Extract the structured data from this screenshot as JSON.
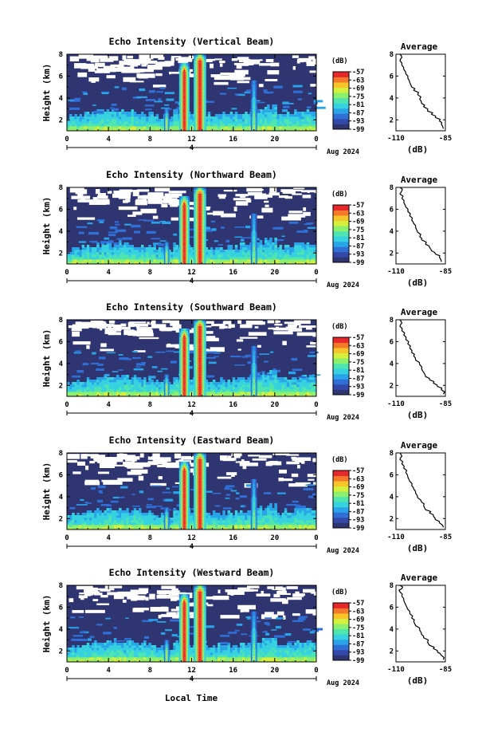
{
  "page": {
    "xlabel": "Local Time"
  },
  "colors": {
    "background": "#2e3571",
    "scale": [
      "#2e3571",
      "#3448a8",
      "#2f6fd6",
      "#2aa4e8",
      "#37d2e0",
      "#4fe5b0",
      "#8cf06e",
      "#d4ef3c",
      "#f7c52a",
      "#f4792a",
      "#e6282a"
    ]
  },
  "chart_data": [
    {
      "type": "heatmap",
      "title": "Echo Intensity (Vertical Beam)",
      "ylabel": "Height (km)",
      "xticks": [
        "0",
        "4",
        "8",
        "12",
        "16",
        "20",
        "0"
      ],
      "xlim": [
        0,
        24
      ],
      "ylim": [
        1,
        8
      ],
      "yticks": [
        "2",
        "4",
        "6",
        "8"
      ],
      "day_marker": "4",
      "month_label": "Aug 2024",
      "colorbar": {
        "unit": "(dB)",
        "ticks": [
          "-57",
          "-63",
          "-69",
          "-75",
          "-81",
          "-87",
          "-93",
          "-99"
        ]
      },
      "profile": {
        "title": "Average",
        "xlabel": "(dB)",
        "xticks": [
          "-110",
          "-85"
        ],
        "xlim": [
          -110,
          -85
        ],
        "yticks": [
          "2",
          "4",
          "6",
          "8"
        ],
        "ylim": [
          1,
          8
        ],
        "x": [
          -86,
          -87,
          -88,
          -90,
          -92,
          -94,
          -96,
          -97,
          -98,
          -99,
          -101,
          -102,
          -103,
          -104,
          -105,
          -106,
          -107,
          -108,
          -107,
          -108
        ],
        "y": [
          1.2,
          1.6,
          1.9,
          2.2,
          2.5,
          2.8,
          3.2,
          3.5,
          3.9,
          4.3,
          4.7,
          5.0,
          5.4,
          5.8,
          6.2,
          6.6,
          7.0,
          7.4,
          7.7,
          8.0
        ]
      }
    },
    {
      "type": "heatmap",
      "title": "Echo Intensity (Northward Beam)",
      "ylabel": "Height (km)",
      "xticks": [
        "0",
        "4",
        "8",
        "12",
        "16",
        "20",
        "0"
      ],
      "xlim": [
        0,
        24
      ],
      "ylim": [
        1,
        8
      ],
      "yticks": [
        "2",
        "4",
        "6",
        "8"
      ],
      "day_marker": "4",
      "month_label": "Aug 2024",
      "colorbar": {
        "unit": "(dB)",
        "ticks": [
          "-57",
          "-63",
          "-69",
          "-75",
          "-81",
          "-87",
          "-93",
          "-99"
        ]
      },
      "profile": {
        "title": "Average",
        "xlabel": "(dB)",
        "xticks": [
          "-110",
          "-85"
        ],
        "xlim": [
          -110,
          -85
        ],
        "yticks": [
          "2",
          "4",
          "6",
          "8"
        ],
        "ylim": [
          1,
          8
        ],
        "x": [
          -87,
          -88,
          -90,
          -92,
          -93,
          -95,
          -97,
          -98,
          -99,
          -100,
          -101,
          -102,
          -103,
          -104,
          -105,
          -106,
          -107,
          -108,
          -107,
          -108
        ],
        "y": [
          1.2,
          1.6,
          1.9,
          2.2,
          2.5,
          2.8,
          3.2,
          3.5,
          3.9,
          4.3,
          4.7,
          5.0,
          5.4,
          5.8,
          6.2,
          6.6,
          7.0,
          7.4,
          7.7,
          8.0
        ]
      }
    },
    {
      "type": "heatmap",
      "title": "Echo Intensity (Southward Beam)",
      "ylabel": "Height (km)",
      "xticks": [
        "0",
        "4",
        "8",
        "12",
        "16",
        "20",
        "0"
      ],
      "xlim": [
        0,
        24
      ],
      "ylim": [
        1,
        8
      ],
      "yticks": [
        "2",
        "4",
        "6",
        "8"
      ],
      "day_marker": "4",
      "month_label": "Aug 2024",
      "colorbar": {
        "unit": "(dB)",
        "ticks": [
          "-57",
          "-63",
          "-69",
          "-75",
          "-81",
          "-87",
          "-93",
          "-99"
        ]
      },
      "profile": {
        "title": "Average",
        "xlabel": "(dB)",
        "xticks": [
          "-110",
          "-85"
        ],
        "xlim": [
          -110,
          -85
        ],
        "yticks": [
          "2",
          "4",
          "6",
          "8"
        ],
        "ylim": [
          1,
          8
        ],
        "x": [
          -86,
          -87,
          -89,
          -91,
          -93,
          -95,
          -96,
          -97,
          -98,
          -100,
          -101,
          -102,
          -103,
          -104,
          -105,
          -106,
          -107,
          -108,
          -107,
          -108
        ],
        "y": [
          1.2,
          1.6,
          1.9,
          2.2,
          2.5,
          2.8,
          3.2,
          3.5,
          3.9,
          4.3,
          4.7,
          5.0,
          5.4,
          5.8,
          6.2,
          6.6,
          7.0,
          7.4,
          7.7,
          8.0
        ]
      }
    },
    {
      "type": "heatmap",
      "title": "Echo Intensity (Eastward Beam)",
      "ylabel": "Height (km)",
      "xticks": [
        "0",
        "4",
        "8",
        "12",
        "16",
        "20",
        "0"
      ],
      "xlim": [
        0,
        24
      ],
      "ylim": [
        1,
        8
      ],
      "yticks": [
        "2",
        "4",
        "6",
        "8"
      ],
      "day_marker": "4",
      "month_label": "Aug 2024",
      "colorbar": {
        "unit": "(dB)",
        "ticks": [
          "-57",
          "-63",
          "-69",
          "-75",
          "-81",
          "-87",
          "-93",
          "-99"
        ]
      },
      "profile": {
        "title": "Average",
        "xlabel": "(dB)",
        "xticks": [
          "-110",
          "-85"
        ],
        "xlim": [
          -110,
          -85
        ],
        "yticks": [
          "2",
          "4",
          "6",
          "8"
        ],
        "ylim": [
          1,
          8
        ],
        "x": [
          -86,
          -88,
          -90,
          -91,
          -93,
          -95,
          -96,
          -97,
          -99,
          -100,
          -101,
          -102,
          -103,
          -104,
          -105,
          -106,
          -107,
          -108,
          -107,
          -108
        ],
        "y": [
          1.2,
          1.6,
          1.9,
          2.2,
          2.5,
          2.8,
          3.2,
          3.5,
          3.9,
          4.3,
          4.7,
          5.0,
          5.4,
          5.8,
          6.2,
          6.6,
          7.0,
          7.4,
          7.7,
          8.0
        ]
      }
    },
    {
      "type": "heatmap",
      "title": "Echo Intensity (Westward Beam)",
      "ylabel": "Height (km)",
      "xticks": [
        "0",
        "4",
        "8",
        "12",
        "16",
        "20",
        "0"
      ],
      "xlim": [
        0,
        24
      ],
      "ylim": [
        1,
        8
      ],
      "yticks": [
        "2",
        "4",
        "6",
        "8"
      ],
      "day_marker": "4",
      "month_label": "Aug 2024",
      "colorbar": {
        "unit": "(dB)",
        "ticks": [
          "-57",
          "-63",
          "-69",
          "-75",
          "-81",
          "-87",
          "-93",
          "-99"
        ]
      },
      "profile": {
        "title": "Average",
        "xlabel": "(dB)",
        "xticks": [
          "-110",
          "-85"
        ],
        "xlim": [
          -110,
          -85
        ],
        "yticks": [
          "2",
          "4",
          "6",
          "8"
        ],
        "ylim": [
          1,
          8
        ],
        "x": [
          -86,
          -87,
          -89,
          -91,
          -93,
          -94,
          -96,
          -97,
          -98,
          -100,
          -101,
          -102,
          -103,
          -104,
          -105,
          -106,
          -107,
          -108,
          -107,
          -108
        ],
        "y": [
          1.2,
          1.6,
          1.9,
          2.2,
          2.5,
          2.8,
          3.2,
          3.5,
          3.9,
          4.3,
          4.7,
          5.0,
          5.4,
          5.8,
          6.2,
          6.6,
          7.0,
          7.4,
          7.7,
          8.0
        ]
      }
    }
  ]
}
